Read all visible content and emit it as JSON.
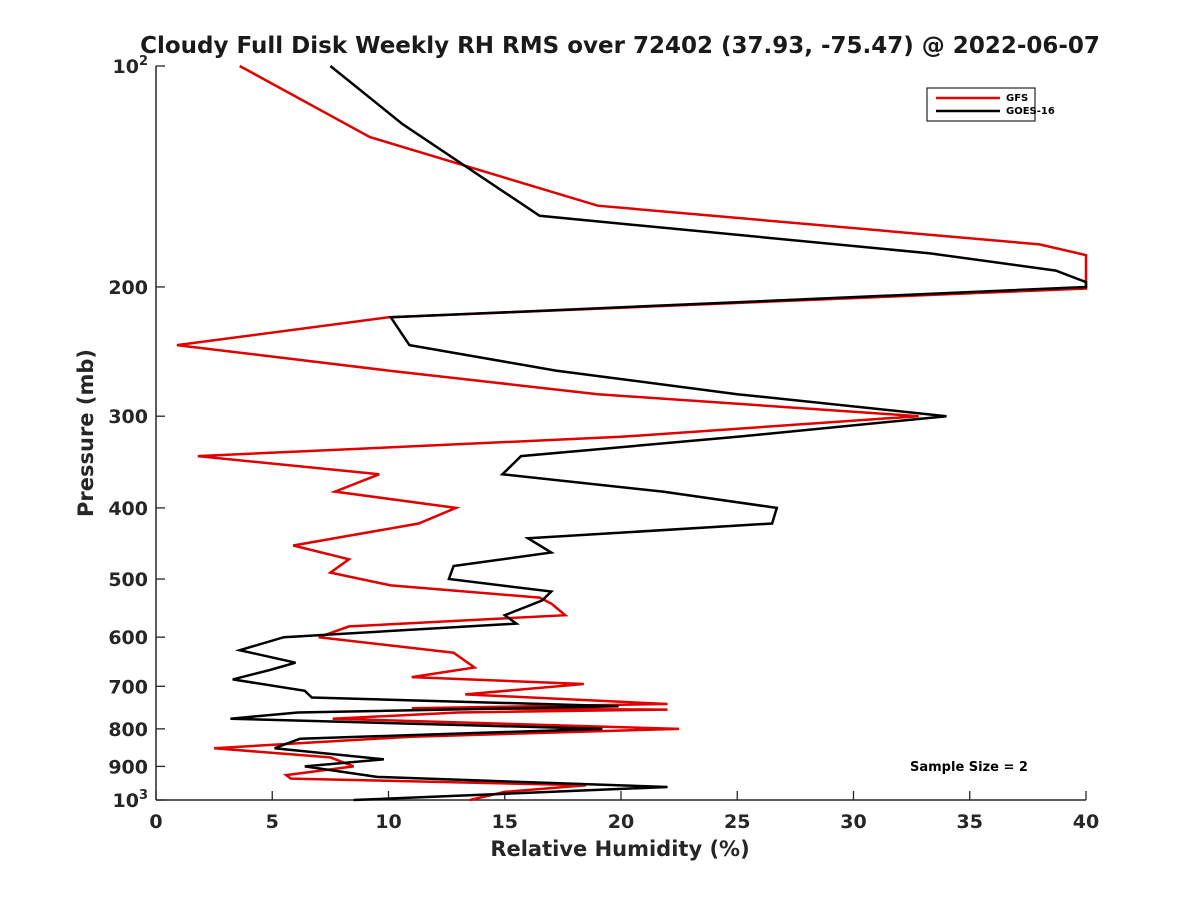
{
  "chart_data": {
    "type": "line",
    "title": "Cloudy Full Disk Weekly RH RMS over 72402 (37.93, -75.47) @ 2022-06-07",
    "xlabel": "Relative Humidity (%)",
    "ylabel": "Pressure (mb)",
    "xlim": [
      0,
      40
    ],
    "ylim": [
      100,
      1000
    ],
    "y_scale": "log",
    "y_reversed": true,
    "grid": false,
    "legend_position": "top-right",
    "x_ticks": [
      "0",
      "5",
      "10",
      "15",
      "20",
      "25",
      "30",
      "35",
      "40"
    ],
    "y_ticks": [
      {
        "value": 100,
        "base": "10",
        "exp": "2"
      },
      {
        "value": 200,
        "label": "200"
      },
      {
        "value": 300,
        "label": "300"
      },
      {
        "value": 400,
        "label": "400"
      },
      {
        "value": 500,
        "label": "500"
      },
      {
        "value": 600,
        "label": "600"
      },
      {
        "value": 700,
        "label": "700"
      },
      {
        "value": 800,
        "label": "800"
      },
      {
        "value": 900,
        "label": "900"
      },
      {
        "value": 1000,
        "base": "10",
        "exp": "3"
      }
    ],
    "annotation": "Sample Size = 2",
    "series": [
      {
        "name": "GFS",
        "color": "#e00000",
        "points": [
          [
            3.6,
            100
          ],
          [
            9.2,
            125
          ],
          [
            19.0,
            155
          ],
          [
            38.0,
            175
          ],
          [
            40.0,
            181
          ],
          [
            40.0,
            200
          ],
          [
            40.0,
            201
          ],
          [
            10.0,
            220
          ],
          [
            0.9,
            240
          ],
          [
            10.0,
            260
          ],
          [
            19.0,
            280
          ],
          [
            32.8,
            300
          ],
          [
            20.0,
            320
          ],
          [
            1.8,
            340
          ],
          [
            9.6,
            360
          ],
          [
            7.7,
            380
          ],
          [
            12.9,
            400
          ],
          [
            11.3,
            420
          ],
          [
            5.9,
            450
          ],
          [
            8.3,
            470
          ],
          [
            7.5,
            490
          ],
          [
            10.1,
            510
          ],
          [
            16.5,
            530
          ],
          [
            17.0,
            540
          ],
          [
            17.6,
            560
          ],
          [
            8.3,
            580
          ],
          [
            7.0,
            600
          ],
          [
            12.8,
            630
          ],
          [
            13.7,
            660
          ],
          [
            11.0,
            680
          ],
          [
            18.4,
            695
          ],
          [
            13.3,
            718
          ],
          [
            22.0,
            740
          ],
          [
            11.0,
            750
          ],
          [
            22.0,
            753
          ],
          [
            13.0,
            760
          ],
          [
            7.6,
            775
          ],
          [
            22.5,
            800
          ],
          [
            11.0,
            820
          ],
          [
            2.5,
            850
          ],
          [
            7.5,
            875
          ],
          [
            8.5,
            900
          ],
          [
            5.6,
            925
          ],
          [
            5.8,
            935
          ],
          [
            18.5,
            955
          ],
          [
            15.0,
            975
          ],
          [
            13.5,
            1000
          ]
        ]
      },
      {
        "name": "GOES-16",
        "color": "#000000",
        "points": [
          [
            7.5,
            100
          ],
          [
            10.6,
            120
          ],
          [
            16.5,
            160
          ],
          [
            33.3,
            180
          ],
          [
            38.7,
            190
          ],
          [
            40.0,
            197
          ],
          [
            40.0,
            200
          ],
          [
            10.1,
            220
          ],
          [
            10.9,
            240
          ],
          [
            17.2,
            260
          ],
          [
            25.0,
            280
          ],
          [
            34.0,
            300
          ],
          [
            25.0,
            320
          ],
          [
            15.7,
            340
          ],
          [
            14.9,
            360
          ],
          [
            21.8,
            380
          ],
          [
            26.7,
            400
          ],
          [
            26.5,
            420
          ],
          [
            16.0,
            440
          ],
          [
            17.0,
            460
          ],
          [
            12.8,
            480
          ],
          [
            12.6,
            500
          ],
          [
            17.0,
            520
          ],
          [
            16.6,
            535
          ],
          [
            15.0,
            560
          ],
          [
            15.5,
            575
          ],
          [
            5.5,
            600
          ],
          [
            3.6,
            625
          ],
          [
            6.0,
            650
          ],
          [
            4.9,
            665
          ],
          [
            3.3,
            685
          ],
          [
            6.4,
            710
          ],
          [
            6.7,
            725
          ],
          [
            19.9,
            745
          ],
          [
            6.1,
            760
          ],
          [
            3.2,
            775
          ],
          [
            19.2,
            800
          ],
          [
            6.2,
            825
          ],
          [
            5.1,
            850
          ],
          [
            9.8,
            880
          ],
          [
            6.4,
            900
          ],
          [
            9.5,
            930
          ],
          [
            22.0,
            960
          ],
          [
            8.5,
            1000
          ]
        ]
      }
    ]
  }
}
